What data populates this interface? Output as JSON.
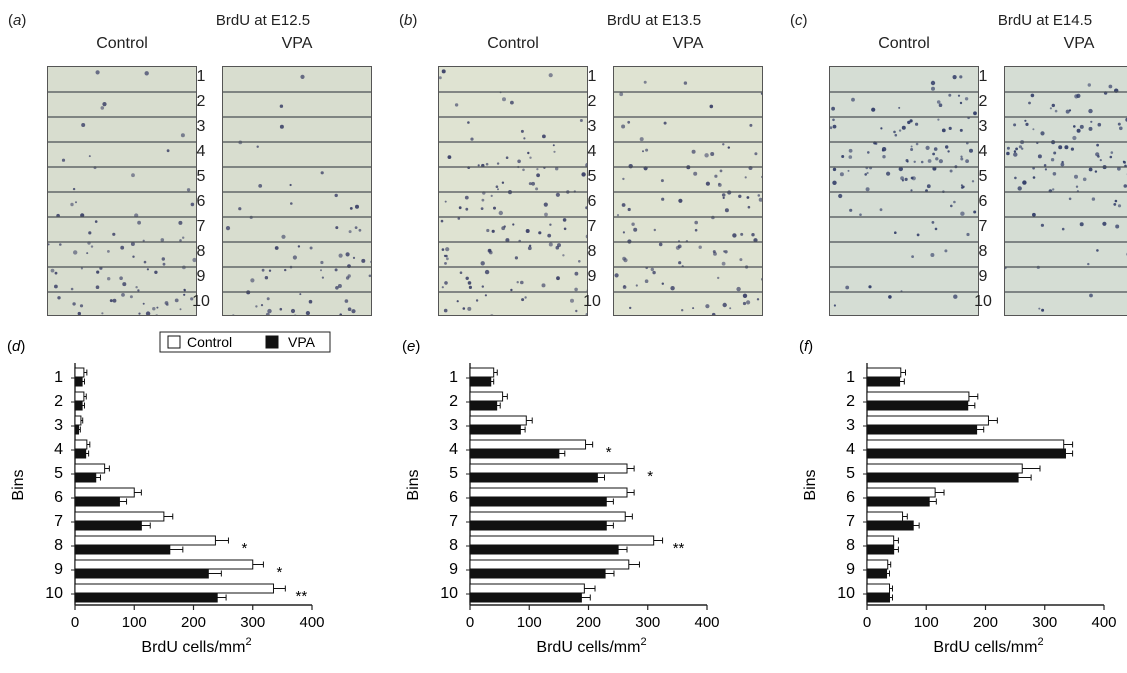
{
  "panels": [
    {
      "label_letter": "a",
      "title": "BrdU at E12.5",
      "col_left": "Control",
      "col_right": "VPA",
      "bins": [
        "1",
        "2",
        "3",
        "4",
        "5",
        "6",
        "7",
        "8",
        "9",
        "10"
      ],
      "tissue_color": "#d8ddcf",
      "dot_color": "#3a3f66",
      "density_control": [
        2,
        2,
        2,
        3,
        4,
        6,
        9,
        14,
        18,
        22
      ],
      "density_vpa": [
        1,
        1,
        1,
        2,
        3,
        5,
        7,
        11,
        14,
        17
      ]
    },
    {
      "label_letter": "b",
      "title": "BrdU at E13.5",
      "col_left": "Control",
      "col_right": "VPA",
      "bins": [
        "1",
        "2",
        "3",
        "4",
        "5",
        "6",
        "7",
        "8",
        "9",
        "10"
      ],
      "tissue_color": "#dfe3d2",
      "dot_color": "#3a3f66",
      "density_control": [
        3,
        4,
        6,
        12,
        15,
        16,
        16,
        18,
        16,
        12
      ],
      "density_vpa": [
        2,
        3,
        5,
        9,
        13,
        14,
        14,
        15,
        14,
        11
      ]
    },
    {
      "label_letter": "c",
      "title": "BrdU at E14.5",
      "col_left": "Control",
      "col_right": "VPA",
      "bins": [
        "1",
        "2",
        "3",
        "4",
        "5",
        "6",
        "7",
        "8",
        "9",
        "10"
      ],
      "tissue_color": "#d5ddd4",
      "dot_color": "#2f3a66",
      "density_control": [
        4,
        12,
        16,
        30,
        26,
        8,
        5,
        3,
        3,
        3
      ],
      "density_vpa": [
        4,
        12,
        15,
        30,
        25,
        7,
        5,
        3,
        3,
        3
      ]
    }
  ],
  "chart_labels": [
    "d",
    "e",
    "f"
  ],
  "colors": {
    "control": "#ffffff",
    "vpa": "#111111",
    "axis": "#222222"
  },
  "chart_data": [
    {
      "type": "bar",
      "orientation": "horizontal",
      "categories": [
        "1",
        "2",
        "3",
        "4",
        "5",
        "6",
        "7",
        "8",
        "9",
        "10"
      ],
      "xlabel": "BrdU cells/mm",
      "xlabel_sup": "2",
      "ylabel": "Bins",
      "xlim": [
        0,
        400
      ],
      "xticks": [
        0,
        100,
        200,
        300,
        400
      ],
      "legend": {
        "entries": [
          "Control",
          "VPA"
        ],
        "placement": "top-right"
      },
      "series": [
        {
          "name": "Control",
          "values": [
            15,
            15,
            10,
            20,
            50,
            100,
            150,
            237,
            300,
            335
          ],
          "errors": [
            5,
            4,
            3,
            5,
            8,
            12,
            15,
            22,
            18,
            20
          ]
        },
        {
          "name": "VPA",
          "values": [
            12,
            12,
            6,
            18,
            35,
            75,
            112,
            160,
            225,
            240
          ],
          "errors": [
            4,
            4,
            3,
            5,
            8,
            12,
            15,
            22,
            22,
            15
          ]
        }
      ],
      "annotations": [
        {
          "category": "8",
          "text": "*"
        },
        {
          "category": "9",
          "text": "*"
        },
        {
          "category": "10",
          "text": "**"
        }
      ]
    },
    {
      "type": "bar",
      "orientation": "horizontal",
      "categories": [
        "1",
        "2",
        "3",
        "4",
        "5",
        "6",
        "7",
        "8",
        "9",
        "10"
      ],
      "xlabel": "BrdU cells/mm",
      "xlabel_sup": "2",
      "ylabel": "Bins",
      "xlim": [
        0,
        400
      ],
      "xticks": [
        0,
        100,
        200,
        300,
        400
      ],
      "series": [
        {
          "name": "Control",
          "values": [
            40,
            55,
            95,
            195,
            265,
            265,
            262,
            310,
            268,
            193
          ],
          "errors": [
            6,
            8,
            10,
            12,
            12,
            12,
            12,
            15,
            18,
            18
          ]
        },
        {
          "name": "VPA",
          "values": [
            35,
            45,
            85,
            150,
            215,
            230,
            230,
            250,
            228,
            188
          ],
          "errors": [
            5,
            6,
            8,
            10,
            12,
            12,
            12,
            15,
            15,
            15
          ]
        }
      ],
      "annotations": [
        {
          "category": "4",
          "text": "*"
        },
        {
          "category": "5",
          "text": "*"
        },
        {
          "category": "8",
          "text": "**"
        }
      ]
    },
    {
      "type": "bar",
      "orientation": "horizontal",
      "categories": [
        "1",
        "2",
        "3",
        "4",
        "5",
        "6",
        "7",
        "8",
        "9",
        "10"
      ],
      "xlabel": "BrdU cells/mm",
      "xlabel_sup": "2",
      "ylabel": "Bins",
      "xlim": [
        0,
        400
      ],
      "xticks": [
        0,
        100,
        200,
        300,
        400
      ],
      "series": [
        {
          "name": "Control",
          "values": [
            57,
            172,
            205,
            332,
            262,
            115,
            60,
            45,
            35,
            38
          ],
          "errors": [
            8,
            15,
            15,
            15,
            30,
            15,
            8,
            8,
            5,
            5
          ]
        },
        {
          "name": "VPA",
          "values": [
            55,
            170,
            185,
            335,
            255,
            105,
            78,
            45,
            33,
            38
          ],
          "errors": [
            8,
            12,
            12,
            12,
            22,
            12,
            10,
            8,
            5,
            5
          ]
        }
      ],
      "annotations": []
    }
  ]
}
